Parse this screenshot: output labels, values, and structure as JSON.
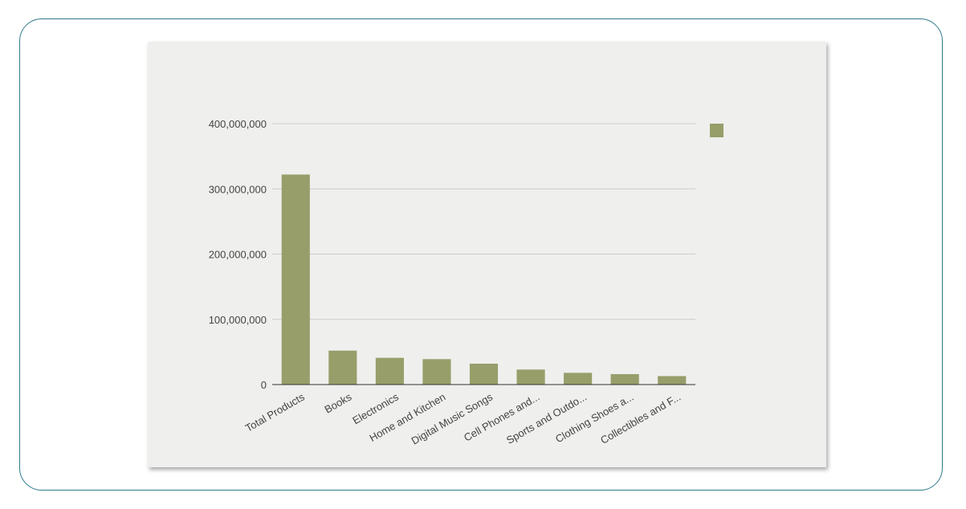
{
  "chart_data": {
    "type": "bar",
    "categories": [
      "Total Products",
      "Books",
      "Electronics",
      "Home and Kitchen",
      "Digital Music Songs",
      "Cell Phones and...",
      "Sports and Outdo...",
      "Clothing Shoes a...",
      "Collectibles and F..."
    ],
    "values": [
      322000000,
      52000000,
      41000000,
      39000000,
      32000000,
      23000000,
      18000000,
      16000000,
      13000000
    ],
    "y_ticks": [
      "0",
      "100,000,000",
      "200,000,000",
      "300,000,000",
      "400,000,000"
    ],
    "ylim": [
      0,
      400000000
    ],
    "grid": true,
    "legend": "right",
    "colors": {
      "bar": "#989e6a",
      "grid": "#cccccc",
      "axis": "#333333",
      "frame": "#2f7a8f",
      "panel": "#efefed"
    }
  }
}
